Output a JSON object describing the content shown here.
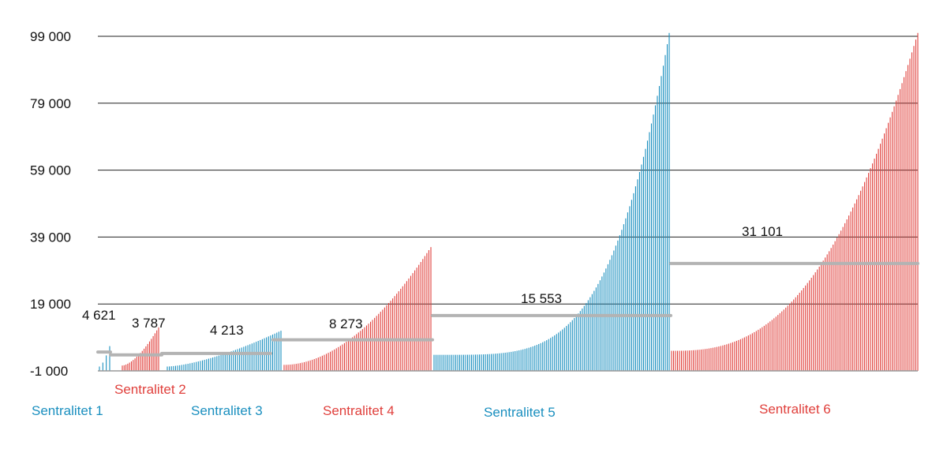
{
  "chart_data": {
    "type": "bar",
    "title": "",
    "xlabel": "",
    "ylabel": "",
    "ylim": [
      -1000,
      99000
    ],
    "yticks": [
      -1000,
      19000,
      39000,
      59000,
      79000,
      99000
    ],
    "ytick_labels": [
      "-1 000",
      "19 000",
      "39 000",
      "59 000",
      "79 000",
      "99 000"
    ],
    "grid": true,
    "colors": {
      "blue": "#1a8fbf",
      "red": "#e0403c",
      "mean_line": "#b3b3b3",
      "grid": "#222222"
    },
    "groups": [
      {
        "name": "Sentralitet 1",
        "color": "blue",
        "mean": 4621,
        "mean_label": "4 621",
        "min": 300,
        "max": 6400,
        "count": 4,
        "shape": 1.5
      },
      {
        "name": "Sentralitet 2",
        "color": "red",
        "mean": 3787,
        "mean_label": "3 787",
        "min": 600,
        "max": 12000,
        "count": 21,
        "shape": 1.6
      },
      {
        "name": "Sentralitet 3",
        "color": "blue",
        "mean": 4213,
        "mean_label": "4 213",
        "min": 300,
        "max": 11000,
        "count": 56,
        "shape": 1.5
      },
      {
        "name": "Sentralitet 4",
        "color": "red",
        "mean": 8273,
        "mean_label": "8 273",
        "min": 800,
        "max": 36000,
        "count": 74,
        "shape": 1.9
      },
      {
        "name": "Sentralitet 5",
        "color": "blue",
        "mean": 15553,
        "mean_label": "15 553",
        "min": 3800,
        "max": 100000,
        "count": 120,
        "shape": 4.2
      },
      {
        "name": "Sentralitet 6",
        "color": "red",
        "mean": 31101,
        "mean_label": "31 101",
        "min": 5000,
        "max": 100000,
        "count": 126,
        "shape": 2.6
      }
    ]
  }
}
